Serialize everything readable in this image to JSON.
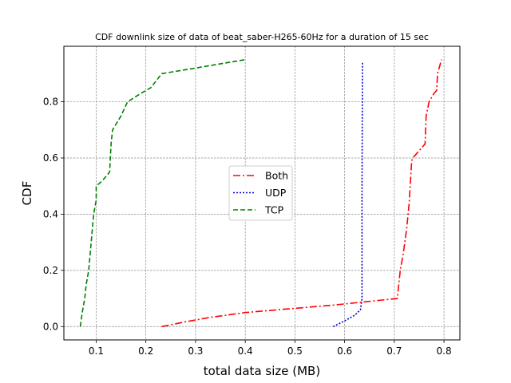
{
  "chart_data": {
    "type": "line",
    "title": "CDF downlink size of data of beat_saber-H265-60Hz for a duration of 15 sec",
    "xlabel": "total data size (MB)",
    "ylabel": "CDF",
    "xlim": [
      0.035,
      0.832
    ],
    "ylim": [
      -0.0475,
      0.9975
    ],
    "xticks": [
      "0.1",
      "0.2",
      "0.3",
      "0.4",
      "0.5",
      "0.6",
      "0.7",
      "0.8"
    ],
    "yticks": [
      "0.0",
      "0.2",
      "0.4",
      "0.6",
      "0.8"
    ],
    "grid": true,
    "legend_position": "center",
    "series": [
      {
        "name": "Both",
        "color": "#ff0000",
        "style": "dashdot",
        "points": [
          [
            0.232,
            0.0
          ],
          [
            0.28,
            0.017
          ],
          [
            0.33,
            0.033
          ],
          [
            0.4,
            0.05
          ],
          [
            0.5,
            0.065
          ],
          [
            0.58,
            0.077
          ],
          [
            0.64,
            0.088
          ],
          [
            0.706,
            0.1
          ],
          [
            0.712,
            0.2
          ],
          [
            0.718,
            0.26
          ],
          [
            0.725,
            0.35
          ],
          [
            0.73,
            0.44
          ],
          [
            0.735,
            0.59
          ],
          [
            0.737,
            0.6
          ],
          [
            0.762,
            0.65
          ],
          [
            0.764,
            0.75
          ],
          [
            0.77,
            0.8
          ],
          [
            0.78,
            0.83
          ],
          [
            0.785,
            0.84
          ],
          [
            0.787,
            0.9
          ],
          [
            0.795,
            0.95
          ]
        ]
      },
      {
        "name": "UDP",
        "color": "#0000cc",
        "style": "dotted",
        "points": [
          [
            0.577,
            0.0
          ],
          [
            0.6,
            0.02
          ],
          [
            0.62,
            0.04
          ],
          [
            0.632,
            0.06
          ],
          [
            0.635,
            0.1
          ],
          [
            0.635,
            0.5
          ],
          [
            0.636,
            0.94
          ]
        ]
      },
      {
        "name": "TCP",
        "color": "#008000",
        "style": "dashed",
        "points": [
          [
            0.068,
            0.0
          ],
          [
            0.072,
            0.05
          ],
          [
            0.077,
            0.1
          ],
          [
            0.08,
            0.15
          ],
          [
            0.085,
            0.2
          ],
          [
            0.09,
            0.3
          ],
          [
            0.095,
            0.4
          ],
          [
            0.1,
            0.45
          ],
          [
            0.1,
            0.5
          ],
          [
            0.113,
            0.52
          ],
          [
            0.127,
            0.55
          ],
          [
            0.13,
            0.65
          ],
          [
            0.133,
            0.7
          ],
          [
            0.15,
            0.75
          ],
          [
            0.163,
            0.8
          ],
          [
            0.19,
            0.83
          ],
          [
            0.21,
            0.85
          ],
          [
            0.232,
            0.9
          ],
          [
            0.3,
            0.92
          ],
          [
            0.4,
            0.95
          ]
        ]
      }
    ]
  }
}
